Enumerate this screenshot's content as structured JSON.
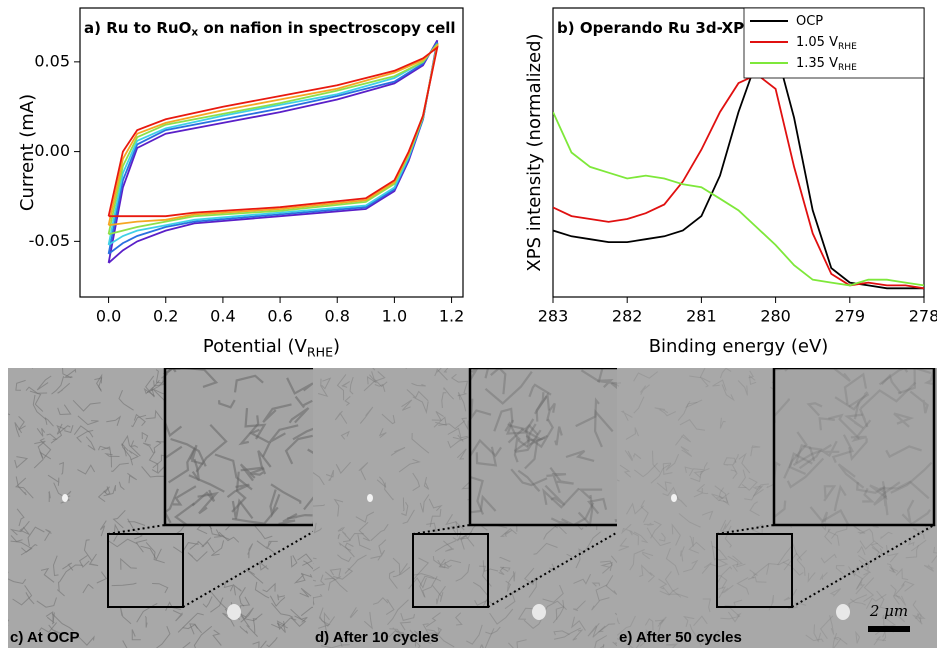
{
  "chart_data": [
    {
      "type": "line",
      "title": {
        "text": "a) Ru to RuO",
        "sub": "x",
        "after": " on nafion in spectroscopy cell"
      },
      "xlabel": {
        "text": "Potential (V",
        "sub": "RHE",
        "after": ")"
      },
      "ylabel": "Current (mA)",
      "x": [
        0,
        0.05,
        0.1,
        0.2,
        0.4,
        0.6,
        0.8,
        1.0,
        1.1,
        1.15,
        1.1,
        1.05,
        1.0,
        0.9,
        0.6,
        0.3,
        0.2,
        0.1,
        0.05,
        0
      ],
      "xlim": [
        -0.1,
        1.24
      ],
      "ylim": [
        -0.081,
        0.08
      ],
      "xticks": [
        {
          "value": 0,
          "label": "0.0"
        },
        0.2,
        0.4,
        0.6,
        0.8,
        {
          "value": 1,
          "label": "1.0"
        },
        1.2
      ],
      "yticks": [
        -0.05,
        {
          "value": 0,
          "label": "0.00"
        },
        0.05
      ],
      "series": [
        {
          "color": "#5a1fc8",
          "values": [
            -0.062,
            -0.02,
            0.002,
            0.01,
            0.016,
            0.022,
            0.029,
            0.038,
            0.048,
            0.062,
            0.018,
            -0.005,
            -0.022,
            -0.032,
            -0.036,
            -0.04,
            -0.044,
            -0.05,
            -0.055,
            -0.062
          ]
        },
        {
          "color": "#2a6fe0",
          "values": [
            -0.057,
            -0.016,
            0.004,
            0.012,
            0.018,
            0.024,
            0.031,
            0.039,
            0.049,
            0.061,
            0.018,
            -0.004,
            -0.021,
            -0.031,
            -0.035,
            -0.039,
            -0.042,
            -0.047,
            -0.051,
            -0.057
          ]
        },
        {
          "color": "#3fd0e6",
          "values": [
            -0.052,
            -0.012,
            0.006,
            0.013,
            0.02,
            0.026,
            0.032,
            0.041,
            0.05,
            0.06,
            0.019,
            -0.003,
            -0.02,
            -0.03,
            -0.034,
            -0.038,
            -0.041,
            -0.044,
            -0.047,
            -0.052
          ]
        },
        {
          "color": "#8ee04a",
          "values": [
            -0.046,
            -0.008,
            0.008,
            0.015,
            0.021,
            0.027,
            0.034,
            0.042,
            0.05,
            0.06,
            0.019,
            -0.002,
            -0.018,
            -0.028,
            -0.033,
            -0.036,
            -0.039,
            -0.042,
            -0.044,
            -0.046
          ]
        },
        {
          "color": "#f5a623",
          "values": [
            -0.041,
            -0.004,
            0.01,
            0.016,
            0.023,
            0.029,
            0.035,
            0.044,
            0.051,
            0.059,
            0.02,
            -0.001,
            -0.017,
            -0.027,
            -0.032,
            -0.035,
            -0.038,
            -0.039,
            -0.04,
            -0.041
          ]
        },
        {
          "color": "#e8190f",
          "values": [
            -0.036,
            0.0,
            0.012,
            0.018,
            0.025,
            0.031,
            0.037,
            0.045,
            0.052,
            0.058,
            0.02,
            0.0,
            -0.016,
            -0.026,
            -0.031,
            -0.034,
            -0.036,
            -0.036,
            -0.036,
            -0.036
          ]
        }
      ]
    },
    {
      "type": "line",
      "title": {
        "text": "b) Operando Ru 3d-XPS"
      },
      "xlabel": {
        "text": "Binding energy (eV)"
      },
      "ylabel": "XPS intensity (normalized)",
      "x": [
        283,
        282.75,
        282.5,
        282.25,
        282,
        281.75,
        281.5,
        281.25,
        281,
        280.75,
        280.5,
        280.25,
        280,
        279.75,
        279.5,
        279.25,
        279,
        278.75,
        278.5,
        278.25,
        278
      ],
      "xlim": [
        283,
        278
      ],
      "ylim": [
        0,
        1
      ],
      "xticks": [
        283,
        282,
        281,
        280,
        279,
        278
      ],
      "legend": "upper right",
      "series": [
        {
          "name": {
            "text": "OCP"
          },
          "color": "#000000",
          "values": [
            0.23,
            0.21,
            0.2,
            0.19,
            0.19,
            0.2,
            0.21,
            0.23,
            0.28,
            0.42,
            0.64,
            0.82,
            0.86,
            0.62,
            0.3,
            0.1,
            0.05,
            0.04,
            0.03,
            0.03,
            0.03
          ]
        },
        {
          "name": {
            "text": "1.05 V",
            "sub": "RHE"
          },
          "color": "#e01010",
          "values": [
            0.31,
            0.28,
            0.27,
            0.26,
            0.27,
            0.29,
            0.32,
            0.4,
            0.51,
            0.64,
            0.74,
            0.77,
            0.72,
            0.45,
            0.22,
            0.08,
            0.04,
            0.05,
            0.04,
            0.04,
            0.03
          ]
        },
        {
          "name": {
            "text": "1.35 V",
            "sub": "RHE"
          },
          "color": "#7ee83a",
          "values": [
            0.64,
            0.5,
            0.45,
            0.43,
            0.41,
            0.42,
            0.41,
            0.39,
            0.38,
            0.34,
            0.3,
            0.24,
            0.18,
            0.11,
            0.06,
            0.05,
            0.04,
            0.06,
            0.06,
            0.05,
            0.04
          ]
        }
      ]
    }
  ],
  "panels": [
    {
      "label": "c) At OCP"
    },
    {
      "label": "d) After 10 cycles"
    },
    {
      "label": "e) After 50 cycles"
    }
  ],
  "scale_bar": "2 μm"
}
